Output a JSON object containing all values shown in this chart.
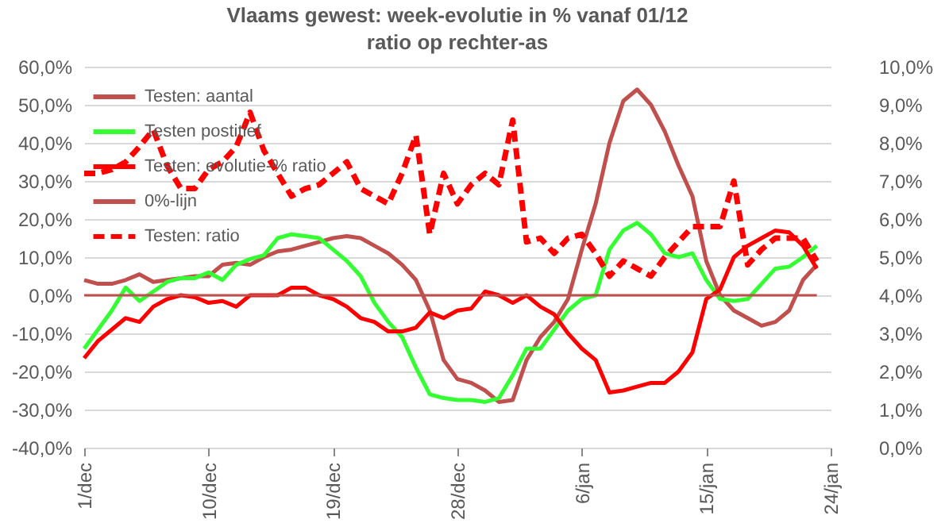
{
  "chart_data": {
    "type": "line",
    "title": "Vlaams gewest: week-evolutie in %  vanaf 01/12",
    "subtitle": "ratio op rechter-as",
    "categories": [
      "1/dec",
      null,
      null,
      null,
      null,
      null,
      null,
      null,
      null,
      "10/dec",
      null,
      null,
      null,
      null,
      null,
      null,
      null,
      null,
      "19/dec",
      null,
      null,
      null,
      null,
      null,
      null,
      null,
      null,
      "28/dec",
      null,
      null,
      null,
      null,
      null,
      null,
      null,
      null,
      "6/jan",
      null,
      null,
      null,
      null,
      null,
      null,
      null,
      null,
      "15/jan",
      null,
      null,
      null,
      null,
      null,
      null,
      null,
      null,
      "24/jan"
    ],
    "series": [
      {
        "name": "Testen: aantal",
        "color": "#c0504d",
        "line_style": "solid",
        "values": [
          4,
          3,
          3,
          4,
          5.5,
          3.5,
          4,
          4.5,
          5,
          5,
          8,
          8.5,
          8,
          10,
          11.5,
          12,
          13,
          14,
          15,
          15.5,
          15,
          13,
          11,
          8,
          4,
          -4,
          -17,
          -22,
          -23,
          -25,
          -28,
          -27.5,
          -17,
          -11,
          -7,
          -1,
          12,
          24,
          40,
          51,
          54,
          50,
          43,
          34,
          26,
          9,
          0,
          -4,
          -6,
          -8,
          -7,
          -4,
          4,
          8,
          null
        ]
      },
      {
        "name": "Testen postitief",
        "color": "#33ff33",
        "line_style": "solid",
        "values": [
          -14,
          -9,
          -4,
          2,
          -1.5,
          1,
          3.5,
          4.5,
          4.5,
          6,
          4,
          8,
          9.5,
          10.5,
          15,
          16,
          15.5,
          15,
          12,
          9,
          5,
          -2,
          -7,
          -11,
          -19,
          -26,
          -27,
          -27.5,
          -27.5,
          -28,
          -27,
          -21,
          -14,
          -14,
          -9,
          -4,
          -1,
          0,
          12,
          17,
          19,
          16,
          11,
          10,
          11,
          4,
          -1,
          -1.5,
          -1,
          3,
          7,
          7.5,
          10,
          13,
          null
        ]
      },
      {
        "name": "Testen: evolutie-% ratio",
        "color": "#ff0000",
        "line_style": "solid",
        "values": [
          -16.5,
          -12,
          -9,
          -6,
          -7,
          -3,
          -1,
          0,
          -0.5,
          -2,
          -1.5,
          -3,
          0,
          0,
          0,
          2,
          2,
          0,
          -1,
          -3,
          -6,
          -7,
          -9.5,
          -9.5,
          -8.5,
          -4.5,
          -6,
          -4,
          -3.5,
          1,
          0,
          -2,
          0,
          -3,
          -5,
          -10,
          -14,
          -17,
          -25.5,
          -25,
          -24,
          -23,
          -23,
          -20,
          -15,
          -1,
          1.5,
          10,
          13,
          15,
          17,
          16.5,
          13,
          7,
          null
        ]
      },
      {
        "name": "0%-lijn",
        "color": "#c0504d",
        "line_style": "solid",
        "values": [
          0,
          0,
          0,
          0,
          0,
          0,
          0,
          0,
          0,
          0,
          0,
          0,
          0,
          0,
          0,
          0,
          0,
          0,
          0,
          0,
          0,
          0,
          0,
          0,
          0,
          0,
          0,
          0,
          0,
          0,
          0,
          0,
          0,
          0,
          0,
          0,
          0,
          0,
          0,
          0,
          0,
          0,
          0,
          0,
          0,
          0,
          0,
          0,
          0,
          0,
          0,
          0,
          0,
          0,
          null
        ]
      },
      {
        "name": "Testen: ratio",
        "color": "#ff0000",
        "axis": "y2",
        "line_style": "dashed",
        "values": [
          7.2,
          7.2,
          7.3,
          7.5,
          7.9,
          8.35,
          7.4,
          6.8,
          6.8,
          7.3,
          7.5,
          7.9,
          8.8,
          7.8,
          7.2,
          6.6,
          6.8,
          6.9,
          7.2,
          7.5,
          6.8,
          6.6,
          6.4,
          7.2,
          8.2,
          5.6,
          7.2,
          6.4,
          6.9,
          7.2,
          6.9,
          8.6,
          5.4,
          5.5,
          5.1,
          5.5,
          5.6,
          5.1,
          4.5,
          4.9,
          4.7,
          4.5,
          5,
          5.4,
          5.8,
          5.8,
          5.8,
          7,
          4.8,
          5.2,
          5.5,
          5.5,
          5.5,
          4.9,
          null
        ]
      }
    ],
    "ylim": [
      -40,
      60
    ],
    "yticks": [
      {
        "value": -40,
        "label": "-40,0%"
      },
      {
        "value": -30,
        "label": "-30,0%"
      },
      {
        "value": -20,
        "label": "-20,0%"
      },
      {
        "value": -10,
        "label": "-10,0%"
      },
      {
        "value": 0,
        "label": "0,0%"
      },
      {
        "value": 10,
        "label": "10,0%"
      },
      {
        "value": 20,
        "label": "20,0%"
      },
      {
        "value": 30,
        "label": "30,0%"
      },
      {
        "value": 40,
        "label": "40,0%"
      },
      {
        "value": 50,
        "label": "50,0%"
      },
      {
        "value": 60,
        "label": "60,0%"
      }
    ],
    "y2lim": [
      0,
      10
    ],
    "y2ticks": [
      {
        "value": 0,
        "label": "0,0%"
      },
      {
        "value": 1,
        "label": "1,0%"
      },
      {
        "value": 2,
        "label": "2,0%"
      },
      {
        "value": 3,
        "label": "3,0%"
      },
      {
        "value": 4,
        "label": "4,0%"
      },
      {
        "value": 5,
        "label": "5,0%"
      },
      {
        "value": 6,
        "label": "6,0%"
      },
      {
        "value": 7,
        "label": "7,0%"
      },
      {
        "value": 8,
        "label": "8,0%"
      },
      {
        "value": 9,
        "label": "9,0%"
      },
      {
        "value": 10,
        "label": "10,0%"
      }
    ],
    "grid": "y",
    "legend": "top left",
    "marker": "none"
  }
}
